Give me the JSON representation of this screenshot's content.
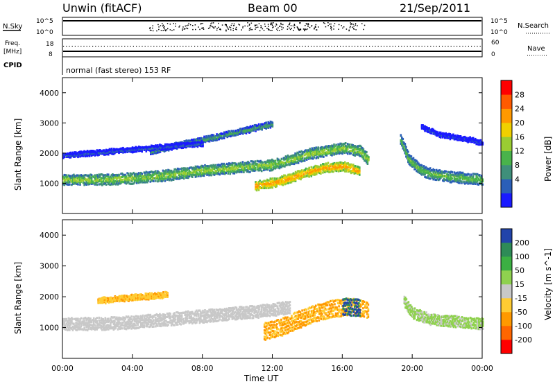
{
  "header": {
    "station": "Unwin (fitACF)",
    "beam": "Beam 00",
    "date": "21/Sep/2011"
  },
  "status_panels": {
    "nsky_label": "N.Sky",
    "nsearch_label": "N.Search",
    "nsky_ticks": [
      "10^5",
      "10^0"
    ],
    "nsearch_ticks": [
      "10^5",
      "10^0"
    ],
    "freq_label": "Freq.",
    "freq_unit": "[MHz]",
    "freq_ticks": [
      "18",
      "8"
    ],
    "nave_label": "Nave",
    "nave_ticks": [
      "60",
      "0"
    ],
    "cpid_label": "CPID",
    "cpid_text": "normal (fast stereo) 153 RF"
  },
  "colors": {
    "power": [
      "#1a1aff",
      "#2b5fb8",
      "#3f8f7a",
      "#49b34b",
      "#9acd32",
      "#f0d000",
      "#ff9900",
      "#ff5a00",
      "#ff0000"
    ],
    "velocity": [
      "#ff0000",
      "#ff6600",
      "#ff9900",
      "#ffcc33",
      "#c8c8c8",
      "#8fd14f",
      "#3cb043",
      "#2e8b57",
      "#2244aa"
    ],
    "ground_scatter": "#c8c8c8"
  },
  "chart_data": [
    {
      "type": "heatmap",
      "name": "power",
      "ylabel": "Slant Range [km]",
      "yticks": [
        1000,
        2000,
        3000,
        4000
      ],
      "ylim": [
        0,
        4500
      ],
      "xticks": [
        "00:00",
        "04:00",
        "08:00",
        "12:00",
        "16:00",
        "20:00",
        "00:00"
      ],
      "xlim": [
        0,
        24
      ],
      "colorbar": {
        "label": "Power [dB]",
        "ticks": [
          "4",
          "8",
          "12",
          "16",
          "20",
          "24",
          "28"
        ],
        "range": [
          0,
          30
        ]
      },
      "bands": [
        {
          "x": [
            0,
            2,
            4,
            6,
            8,
            10,
            12,
            13,
            14,
            15,
            16,
            17,
            17.5
          ],
          "y": [
            1150,
            1150,
            1200,
            1300,
            1450,
            1550,
            1650,
            1800,
            2000,
            2100,
            2200,
            2100,
            1800
          ],
          "width": 300,
          "level": 16
        },
        {
          "x": [
            11,
            12,
            13,
            14,
            15,
            16,
            17
          ],
          "y": [
            950,
            1050,
            1200,
            1400,
            1550,
            1600,
            1450
          ],
          "width": 250,
          "level": 24
        },
        {
          "x": [
            19.3,
            19.8,
            20.5,
            21,
            22,
            23,
            24
          ],
          "y": [
            2500,
            1800,
            1450,
            1350,
            1250,
            1200,
            1150
          ],
          "width": 300,
          "level": 14
        },
        {
          "x": [
            5,
            7,
            9,
            10.5,
            12
          ],
          "y": [
            2100,
            2350,
            2600,
            2800,
            3000
          ],
          "width": 150,
          "level": 12
        },
        {
          "x": [
            0,
            2,
            4,
            6,
            8
          ],
          "y": [
            1950,
            2050,
            2150,
            2250,
            2350
          ],
          "width": 120,
          "level": 6
        },
        {
          "x": [
            20.5,
            21.5,
            22.5,
            23.5,
            24
          ],
          "y": [
            2900,
            2650,
            2550,
            2450,
            2350
          ],
          "width": 120,
          "level": 4
        }
      ]
    },
    {
      "type": "heatmap",
      "name": "velocity",
      "ylabel": "Slant Range [km]",
      "yticks": [
        1000,
        2000,
        3000,
        4000
      ],
      "ylim": [
        0,
        4500
      ],
      "xticks": [
        "00:00",
        "04:00",
        "08:00",
        "12:00",
        "16:00",
        "20:00",
        "00:00"
      ],
      "xlim": [
        0,
        24
      ],
      "xlabel": "Time UT",
      "colorbar": {
        "label": "Velocity [m s^-1]",
        "ticks": [
          "200",
          "100",
          "50",
          "15",
          "-15",
          "-50",
          "-100",
          "-200"
        ]
      },
      "bands": [
        {
          "x": [
            0,
            2,
            4,
            6,
            8,
            10,
            12,
            13
          ],
          "y": [
            1150,
            1150,
            1200,
            1300,
            1400,
            1500,
            1600,
            1700
          ],
          "width": 350,
          "velocity": 0
        },
        {
          "x": [
            11.5,
            12.5,
            13.5,
            14.5,
            15.5,
            16.5,
            17.5
          ],
          "y": [
            900,
            1050,
            1300,
            1500,
            1650,
            1700,
            1600
          ],
          "width": 500,
          "velocity": -80
        },
        {
          "x": [
            16,
            16.5,
            17
          ],
          "y": [
            1700,
            1700,
            1650
          ],
          "width": 500,
          "velocity": 180
        },
        {
          "x": [
            19.5,
            20,
            21,
            22,
            23,
            24
          ],
          "y": [
            1900,
            1500,
            1300,
            1250,
            1200,
            1150
          ],
          "width": 300,
          "velocity": 40
        },
        {
          "x": [
            2,
            4,
            6
          ],
          "y": [
            1900,
            2000,
            2100
          ],
          "width": 150,
          "velocity": -60
        }
      ]
    }
  ],
  "x_axis_label": "Time UT"
}
